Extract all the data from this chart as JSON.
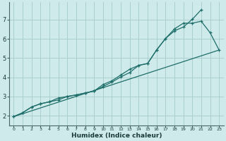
{
  "xlabel": "Humidex (Indice chaleur)",
  "bg_color": "#ceeaea",
  "grid_color": "#aacece",
  "line_color": "#1e6e6a",
  "xlim": [
    -0.5,
    23.5
  ],
  "ylim": [
    1.5,
    7.9
  ],
  "xticks": [
    0,
    1,
    2,
    3,
    4,
    5,
    6,
    7,
    8,
    9,
    10,
    11,
    12,
    13,
    14,
    15,
    16,
    17,
    18,
    19,
    20,
    21,
    22,
    23
  ],
  "yticks": [
    2,
    3,
    4,
    5,
    6,
    7
  ],
  "line1_x": [
    0,
    1,
    2,
    3,
    4,
    5,
    6,
    7,
    8,
    9,
    10,
    11,
    12,
    13,
    14,
    15,
    16,
    17,
    18,
    19,
    20,
    21
  ],
  "line1_y": [
    1.95,
    2.15,
    2.45,
    2.62,
    2.72,
    2.82,
    3.0,
    3.08,
    3.18,
    3.28,
    3.52,
    3.75,
    4.02,
    4.25,
    4.62,
    4.72,
    5.42,
    6.02,
    6.42,
    6.62,
    7.02,
    7.52
  ],
  "line2_x": [
    0,
    1,
    2,
    3,
    4,
    5,
    6,
    7,
    8,
    9,
    10,
    11,
    12,
    13,
    14,
    15,
    16,
    17,
    18,
    19,
    20,
    21,
    22,
    23
  ],
  "line2_y": [
    1.95,
    2.15,
    2.45,
    2.62,
    2.72,
    2.92,
    3.0,
    3.08,
    3.18,
    3.28,
    3.62,
    3.82,
    4.12,
    4.42,
    4.62,
    4.72,
    5.42,
    6.02,
    6.52,
    6.82,
    6.82,
    6.92,
    6.32,
    5.42
  ],
  "line3_x": [
    0,
    23
  ],
  "line3_y": [
    1.95,
    5.42
  ]
}
